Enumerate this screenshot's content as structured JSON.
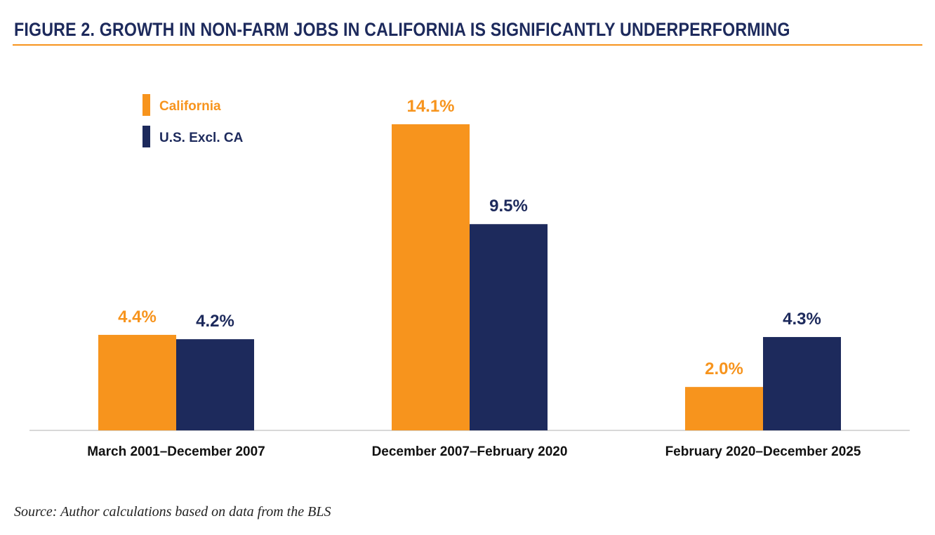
{
  "header": {
    "figure_label": "FIGURE 2.",
    "title": "GROWTH IN NON-FARM JOBS IN CALIFORNIA IS SIGNIFICANTLY UNDERPERFORMING"
  },
  "colors": {
    "california": "#f7941d",
    "us_excl_ca": "#1d2a5c",
    "rule": "#f7941d",
    "axis": "#cccccc",
    "category_text": "#111111"
  },
  "chart_data": {
    "type": "bar",
    "title": "GROWTH IN NON-FARM JOBS IN CALIFORNIA IS SIGNIFICANTLY UNDERPERFORMING",
    "categories": [
      "March 2001–December 2007",
      "December 2007–February 2020",
      "February 2020–December 2025"
    ],
    "series": [
      {
        "name": "California",
        "values": [
          4.4,
          14.1,
          2.0
        ],
        "labels": [
          "4.4%",
          "14.1%",
          "2.0%"
        ]
      },
      {
        "name": "U.S. Excl. CA",
        "values": [
          4.2,
          9.5,
          4.3
        ],
        "labels": [
          "4.2%",
          "9.5%",
          "4.3%"
        ]
      }
    ],
    "xlabel": "",
    "ylabel": "",
    "ylim": [
      0,
      14.1
    ],
    "grid": false,
    "legend_position": "top-left"
  },
  "source": "Source: Author calculations based on data from the BLS"
}
